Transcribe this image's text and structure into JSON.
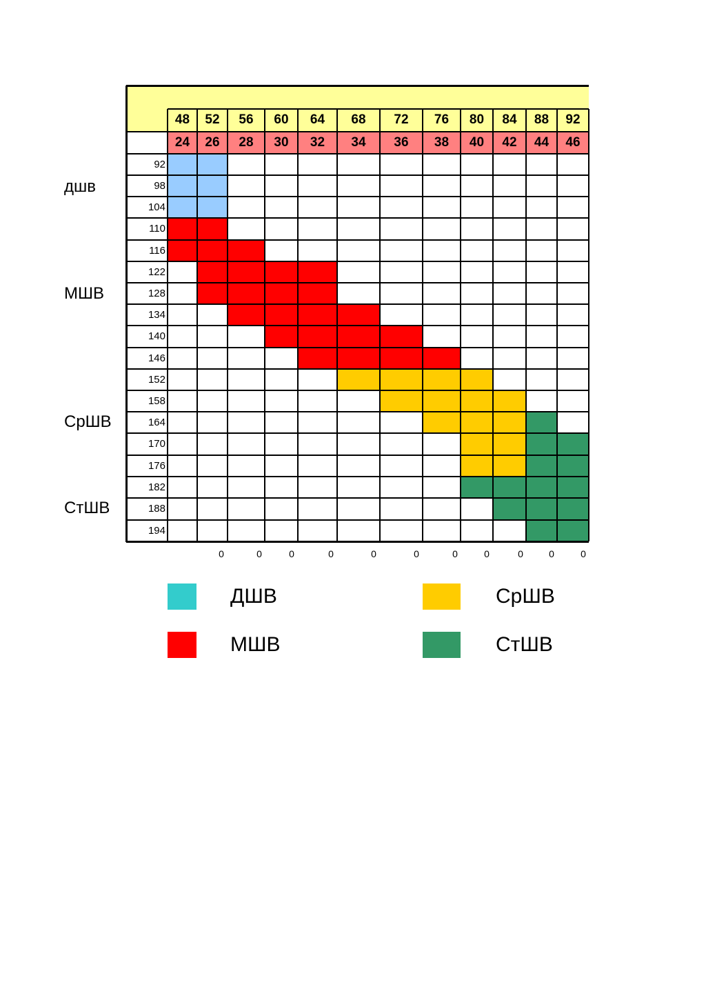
{
  "table": {
    "top_header": [
      "48",
      "52",
      "56",
      "60",
      "64",
      "68",
      "72",
      "76",
      "80",
      "84",
      "88",
      "92"
    ],
    "second_header": [
      "24",
      "26",
      "28",
      "30",
      "32",
      "34",
      "36",
      "38",
      "40",
      "42",
      "44",
      "46"
    ],
    "rows": [
      "92",
      "98",
      "104",
      "110",
      "116",
      "122",
      "128",
      "134",
      "140",
      "146",
      "152",
      "158",
      "164",
      "170",
      "176",
      "182",
      "188",
      "194"
    ],
    "footer_zeros": [
      "0",
      "0",
      "0",
      "0",
      "0",
      "0",
      "0",
      "0",
      "0",
      "0",
      "0"
    ],
    "colors": {
      "header_yellow": "#ffff99",
      "header_pink": "#ff8080",
      "blue": "#99ccff",
      "red": "#ff0000",
      "orange": "#ffcc00",
      "green": "#339966"
    },
    "fills": [
      {
        "row": 0,
        "from": 0,
        "to": 1,
        "color": "blue"
      },
      {
        "row": 1,
        "from": 0,
        "to": 1,
        "color": "blue"
      },
      {
        "row": 2,
        "from": 0,
        "to": 1,
        "color": "blue"
      },
      {
        "row": 3,
        "from": 0,
        "to": 1,
        "color": "red"
      },
      {
        "row": 4,
        "from": 0,
        "to": 2,
        "color": "red"
      },
      {
        "row": 5,
        "from": 1,
        "to": 4,
        "color": "red"
      },
      {
        "row": 6,
        "from": 1,
        "to": 4,
        "color": "red"
      },
      {
        "row": 7,
        "from": 2,
        "to": 5,
        "color": "red"
      },
      {
        "row": 8,
        "from": 3,
        "to": 6,
        "color": "red"
      },
      {
        "row": 9,
        "from": 4,
        "to": 7,
        "color": "red"
      },
      {
        "row": 10,
        "from": 5,
        "to": 8,
        "color": "orange"
      },
      {
        "row": 11,
        "from": 6,
        "to": 9,
        "color": "orange"
      },
      {
        "row": 12,
        "from": 7,
        "to": 9,
        "color": "orange"
      },
      {
        "row": 12,
        "from": 10,
        "to": 10,
        "color": "green"
      },
      {
        "row": 13,
        "from": 8,
        "to": 9,
        "color": "orange"
      },
      {
        "row": 13,
        "from": 10,
        "to": 11,
        "color": "green"
      },
      {
        "row": 14,
        "from": 8,
        "to": 9,
        "color": "orange"
      },
      {
        "row": 14,
        "from": 10,
        "to": 11,
        "color": "green"
      },
      {
        "row": 15,
        "from": 8,
        "to": 11,
        "color": "green"
      },
      {
        "row": 16,
        "from": 9,
        "to": 11,
        "color": "green"
      },
      {
        "row": 17,
        "from": 10,
        "to": 11,
        "color": "green"
      }
    ]
  },
  "group_labels": {
    "dshv": "дшв",
    "mshv": "МШВ",
    "srshv": "СрШВ",
    "stshv": "СтШВ"
  },
  "legend": {
    "items": [
      {
        "label": "ДШВ",
        "color": "#33cccc"
      },
      {
        "label": "СрШВ",
        "color": "#ffcc00"
      },
      {
        "label": "МШВ",
        "color": "#ff0000"
      },
      {
        "label": "СтШВ",
        "color": "#339966"
      }
    ]
  }
}
